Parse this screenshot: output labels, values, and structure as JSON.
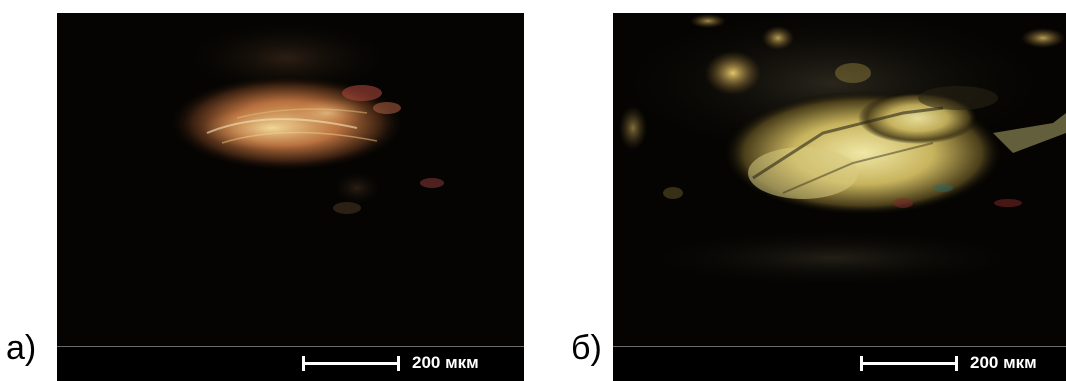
{
  "panels": [
    {
      "letter": "а)",
      "scale_label": "200 мкм"
    },
    {
      "letter": "б)",
      "scale_label": "200 мкм"
    }
  ],
  "colors": {
    "background": "#050402",
    "grain_gold": "#d9c36a",
    "grain_copper": "#c9814a",
    "grain_pale": "#e8e2a0",
    "scalebar": "#ffffff"
  }
}
